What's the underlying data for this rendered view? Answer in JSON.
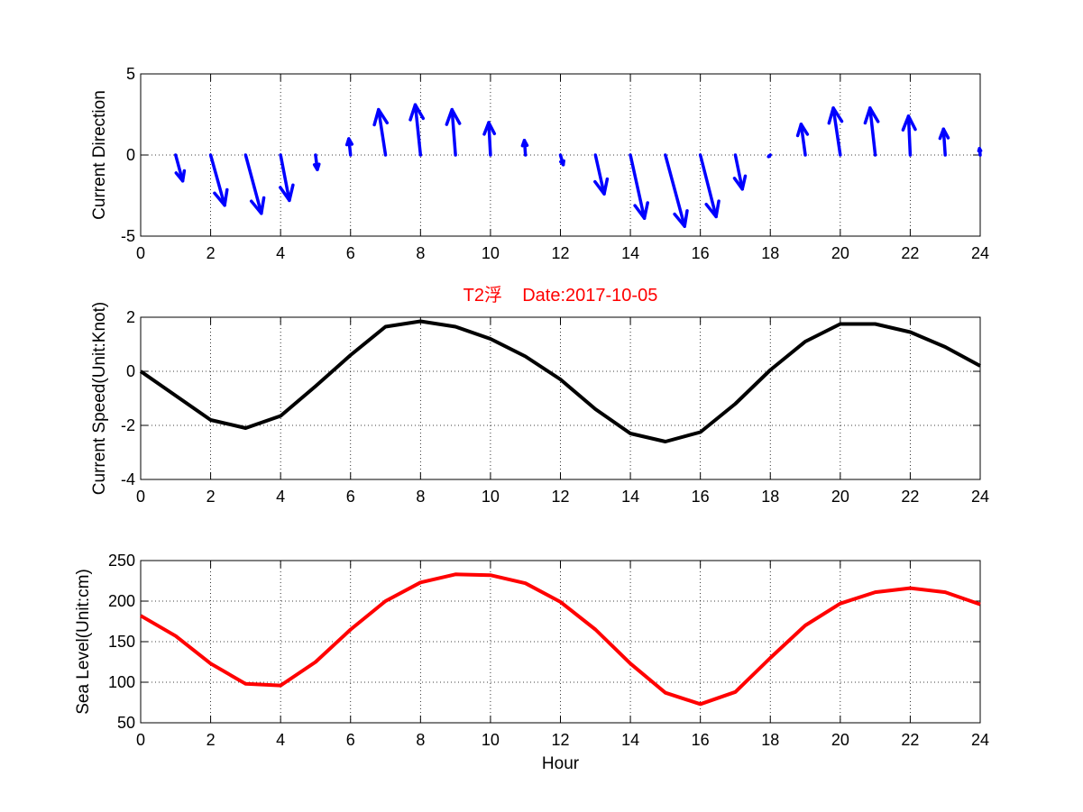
{
  "chart_data": [
    {
      "type": "quiver",
      "ylabel": "Current Direction",
      "xlabel": "",
      "xlim": [
        0,
        24
      ],
      "ylim": [
        -5,
        5
      ],
      "xticks": [
        0,
        2,
        4,
        6,
        8,
        10,
        12,
        14,
        16,
        18,
        20,
        22,
        24
      ],
      "yticks": [
        -5,
        0,
        5
      ],
      "grid": true,
      "color": "#0000ff",
      "x": [
        1,
        2,
        3,
        4,
        5,
        6,
        7,
        8,
        9,
        10,
        11,
        12,
        13,
        14,
        15,
        16,
        17,
        18,
        19,
        20,
        21,
        22,
        23,
        24
      ],
      "u": [
        0.2,
        0.4,
        0.45,
        0.25,
        0.05,
        -0.05,
        -0.2,
        -0.15,
        -0.1,
        -0.05,
        -0.03,
        0.08,
        0.25,
        0.4,
        0.55,
        0.45,
        0.2,
        -0.05,
        -0.12,
        -0.2,
        -0.15,
        -0.05,
        -0.05,
        -0.02
      ],
      "v": [
        -1.6,
        -3.1,
        -3.6,
        -2.8,
        -0.9,
        1.0,
        2.8,
        3.1,
        2.8,
        2.0,
        0.9,
        -0.6,
        -2.4,
        -3.9,
        -4.4,
        -3.8,
        -2.1,
        -0.1,
        1.9,
        2.9,
        2.9,
        2.4,
        1.6,
        0.4
      ]
    },
    {
      "type": "line",
      "title": "T2浮    Date:2017-10-05",
      "title_color": "#ff0000",
      "ylabel": "Current Speed(Unit:Knot)",
      "xlabel": "",
      "xlim": [
        0,
        24
      ],
      "ylim": [
        -4,
        2
      ],
      "xticks": [
        0,
        2,
        4,
        6,
        8,
        10,
        12,
        14,
        16,
        18,
        20,
        22,
        24
      ],
      "yticks": [
        -4,
        -2,
        0,
        2
      ],
      "grid": true,
      "color": "#000000",
      "x": [
        0,
        1,
        2,
        3,
        4,
        5,
        6,
        7,
        8,
        9,
        10,
        11,
        12,
        13,
        14,
        15,
        16,
        17,
        18,
        19,
        20,
        21,
        22,
        23,
        24
      ],
      "y": [
        0.0,
        -0.9,
        -1.8,
        -2.1,
        -1.65,
        -0.55,
        0.6,
        1.65,
        1.85,
        1.65,
        1.2,
        0.55,
        -0.3,
        -1.4,
        -2.3,
        -2.6,
        -2.25,
        -1.2,
        0.05,
        1.1,
        1.75,
        1.75,
        1.45,
        0.9,
        0.2
      ]
    },
    {
      "type": "line",
      "ylabel": "Sea Level(Unit:cm)",
      "xlabel": "Hour",
      "xlim": [
        0,
        24
      ],
      "ylim": [
        50,
        250
      ],
      "xticks": [
        0,
        2,
        4,
        6,
        8,
        10,
        12,
        14,
        16,
        18,
        20,
        22,
        24
      ],
      "yticks": [
        50,
        100,
        150,
        200,
        250
      ],
      "grid": true,
      "color": "#ff0000",
      "x": [
        0,
        1,
        2,
        3,
        4,
        5,
        6,
        7,
        8,
        9,
        10,
        11,
        12,
        13,
        14,
        15,
        16,
        17,
        18,
        19,
        20,
        21,
        22,
        23,
        24
      ],
      "y": [
        182,
        157,
        123,
        98,
        96,
        125,
        165,
        200,
        223,
        233,
        232,
        222,
        199,
        165,
        123,
        87,
        73,
        88,
        130,
        170,
        197,
        211,
        216,
        211,
        196
      ]
    }
  ]
}
